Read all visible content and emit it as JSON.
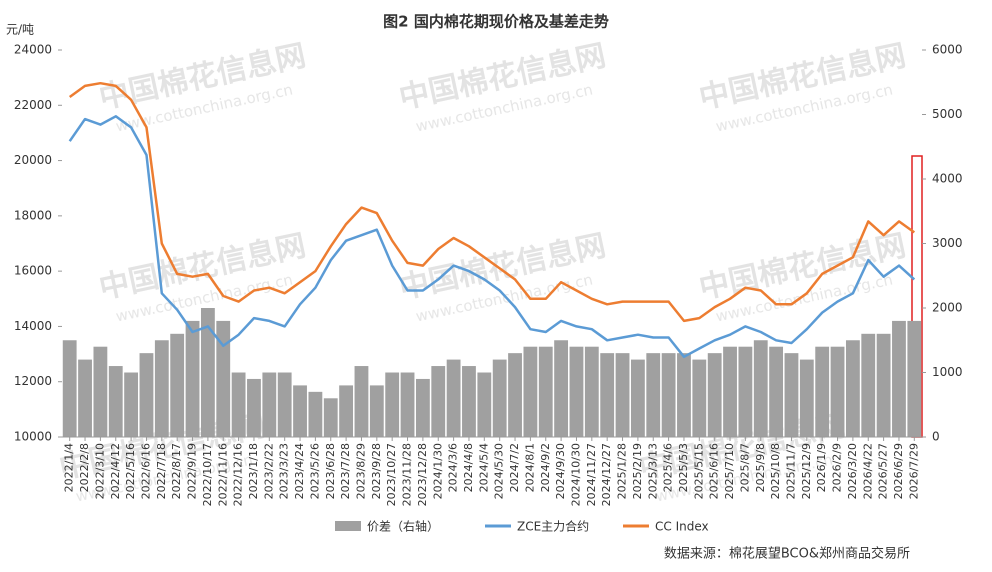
{
  "chart_data": {
    "type": "bar-line",
    "title": "图2 国内棉花期现价格及基差走势",
    "y_label": "元/吨",
    "source": "数据来源：棉花展望BCO&郑州商品交易所",
    "watermark": {
      "title": "中国棉花信息网",
      "url": "www.cottonchina.org.cn"
    },
    "categories": [
      "2022/1/4",
      "2022/2/8",
      "2022/3/10",
      "2022/4/12",
      "2022/5/16",
      "2022/6/16",
      "2022/7/18",
      "2022/8/17",
      "2022/9/19",
      "2022/10/17",
      "2022/11/16",
      "2022/12/16",
      "2023/1/18",
      "2023/2/22",
      "2023/3/23",
      "2023/4/24",
      "2023/5/26",
      "2023/6/28",
      "2023/7/28",
      "2023/8/29",
      "2023/9/28",
      "2023/10/27",
      "2023/11/28",
      "2023/12/28",
      "2024/1/30",
      "2024/3/6",
      "2024/4/8",
      "2024/5/4",
      "2024/5/30",
      "2024/7/2",
      "2024/8/1",
      "2024/9/2",
      "2024/9/30",
      "2024/10/30",
      "2024/11/27",
      "2024/12/27",
      "2025/1/28",
      "2025/2/19",
      "2025/3/13",
      "2025/4/6",
      "2025/5/3",
      "2025/5/15",
      "2025/6/16",
      "2025/7/10",
      "2025/8/7",
      "2025/9/8",
      "2025/10/8",
      "2025/11/7",
      "2025/12/9",
      "2026/1/9",
      "2026/2/9",
      "2026/3/20",
      "2026/4/22",
      "2026/5/27",
      "2026/6/29",
      "2026/7/29"
    ],
    "series": [
      {
        "name": "价差（右轴）",
        "color": "#a0a0a0",
        "axis": "y2",
        "kind": "bar",
        "values": [
          1500,
          1200,
          1400,
          1100,
          1000,
          1300,
          1500,
          1600,
          1800,
          2000,
          1800,
          1000,
          900,
          1000,
          1000,
          800,
          700,
          600,
          800,
          1100,
          800,
          1000,
          1000,
          900,
          1100,
          1200,
          1100,
          1000,
          1200,
          1300,
          1400,
          1400,
          1500,
          1400,
          1400,
          1300,
          1300,
          1200,
          1300,
          1300,
          1300,
          1200,
          1300,
          1400,
          1400,
          1500,
          1400,
          1300,
          1200,
          1400,
          1400,
          1500,
          1600,
          1600,
          1800,
          1800
        ]
      },
      {
        "name": "ZCE主力合约",
        "color": "#5b9bd5",
        "kind": "line",
        "values": [
          20700,
          21500,
          21300,
          21600,
          21200,
          20200,
          15200,
          14600,
          13800,
          14000,
          13300,
          13700,
          14300,
          14200,
          14000,
          14800,
          15400,
          16400,
          17100,
          17300,
          17500,
          16200,
          15300,
          15300,
          15700,
          16200,
          16000,
          15700,
          15300,
          14700,
          13900,
          13800,
          14200,
          14000,
          13900,
          13500,
          13600,
          13700,
          13600,
          13600,
          12900,
          13200,
          13500,
          13700,
          14000,
          13800,
          13500,
          13400,
          13900,
          14500,
          14900,
          15200,
          16400,
          15800,
          16200,
          15700
        ]
      },
      {
        "name": "CC Index",
        "color": "#ed7d31",
        "kind": "line",
        "values": [
          22300,
          22700,
          22800,
          22700,
          22200,
          21200,
          17000,
          15900,
          15800,
          15900,
          15100,
          14900,
          15300,
          15400,
          15200,
          15600,
          16000,
          16900,
          17700,
          18300,
          18100,
          17100,
          16300,
          16200,
          16800,
          17200,
          16900,
          16500,
          16100,
          15700,
          15000,
          15000,
          15600,
          15300,
          15000,
          14800,
          14900,
          14900,
          14900,
          14900,
          14200,
          14300,
          14700,
          15000,
          15400,
          15300,
          14800,
          14800,
          15200,
          15900,
          16200,
          16500,
          17800,
          17300,
          17800,
          17400
        ]
      }
    ],
    "ylim": [
      10000,
      24000
    ],
    "yticks": [
      10000,
      12000,
      14000,
      16000,
      18000,
      20000,
      22000,
      24000
    ],
    "y2lim": [
      0,
      6000
    ],
    "y2ticks": [
      0,
      1000,
      2000,
      3000,
      4000,
      5000,
      6000
    ]
  }
}
